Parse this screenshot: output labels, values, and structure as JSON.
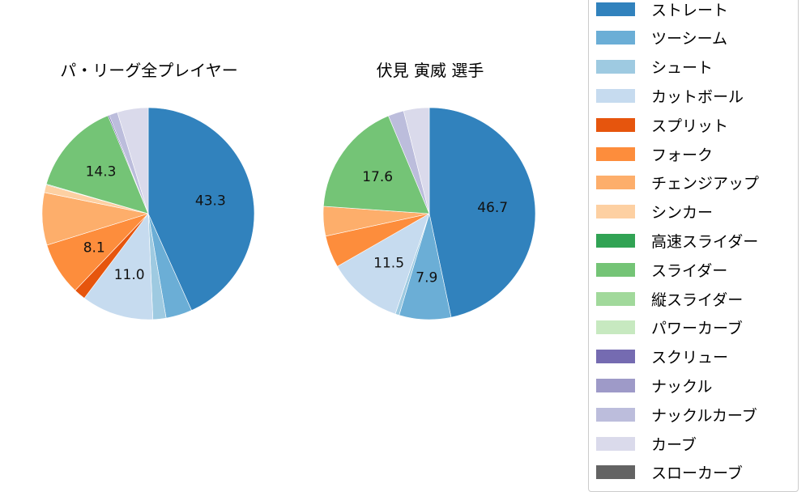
{
  "chart_data": [
    {
      "type": "pie",
      "title": "パ・リーグ全プレイヤー",
      "start_angle": 90,
      "direction": "clockwise",
      "categories": [
        "ストレート",
        "ツーシーム",
        "シュート",
        "カットボール",
        "スプリット",
        "フォーク",
        "チェンジアップ",
        "シンカー",
        "高速スライダー",
        "スライダー",
        "縦スライダー",
        "パワーカーブ",
        "スクリュー",
        "ナックル",
        "ナックルカーブ",
        "カーブ",
        "スローカーブ"
      ],
      "values": [
        43.3,
        4.0,
        2.0,
        11.0,
        1.8,
        8.1,
        8.0,
        1.2,
        0.1,
        14.3,
        0.0,
        0.0,
        0.2,
        0.0,
        1.3,
        4.7,
        0.0
      ],
      "labels_shown": {
        "ストレート": "43.3",
        "カットボール": "11.0",
        "フォーク": "8.1",
        "スライダー": "14.3"
      }
    },
    {
      "type": "pie",
      "title": "伏見 寅威  選手",
      "start_angle": 90,
      "direction": "clockwise",
      "categories": [
        "ストレート",
        "ツーシーム",
        "シュート",
        "カットボール",
        "スプリット",
        "フォーク",
        "チェンジアップ",
        "シンカー",
        "高速スライダー",
        "スライダー",
        "縦スライダー",
        "パワーカーブ",
        "スクリュー",
        "ナックル",
        "ナックルカーブ",
        "カーブ",
        "スローカーブ"
      ],
      "values": [
        46.7,
        7.9,
        0.6,
        11.5,
        0.0,
        4.9,
        4.5,
        0.0,
        0.0,
        17.6,
        0.0,
        0.0,
        0.0,
        0.0,
        2.4,
        3.9,
        0.0
      ],
      "labels_shown": {
        "ストレート": "46.7",
        "ツーシーム": "7.9",
        "カットボール": "11.5",
        "スライダー": "17.6"
      }
    }
  ],
  "titles": {
    "left": "パ・リーグ全プレイヤー",
    "right": "伏見 寅威  選手"
  },
  "legend": {
    "position": "right",
    "items": [
      {
        "label": "ストレート",
        "color": "#3182bd"
      },
      {
        "label": "ツーシーム",
        "color": "#6baed6"
      },
      {
        "label": "シュート",
        "color": "#9ecae1"
      },
      {
        "label": "カットボール",
        "color": "#c6dbef"
      },
      {
        "label": "スプリット",
        "color": "#e6550d"
      },
      {
        "label": "フォーク",
        "color": "#fd8d3c"
      },
      {
        "label": "チェンジアップ",
        "color": "#fdae6b"
      },
      {
        "label": "シンカー",
        "color": "#fdd0a2"
      },
      {
        "label": "高速スライダー",
        "color": "#31a354"
      },
      {
        "label": "スライダー",
        "color": "#74c476"
      },
      {
        "label": "縦スライダー",
        "color": "#a1d99b"
      },
      {
        "label": "パワーカーブ",
        "color": "#c7e9c0"
      },
      {
        "label": "スクリュー",
        "color": "#756bb1"
      },
      {
        "label": "ナックル",
        "color": "#9e9ac8"
      },
      {
        "label": "ナックルカーブ",
        "color": "#bcbddc"
      },
      {
        "label": "カーブ",
        "color": "#dadaeb"
      },
      {
        "label": "スローカーブ",
        "color": "#636363"
      }
    ]
  }
}
